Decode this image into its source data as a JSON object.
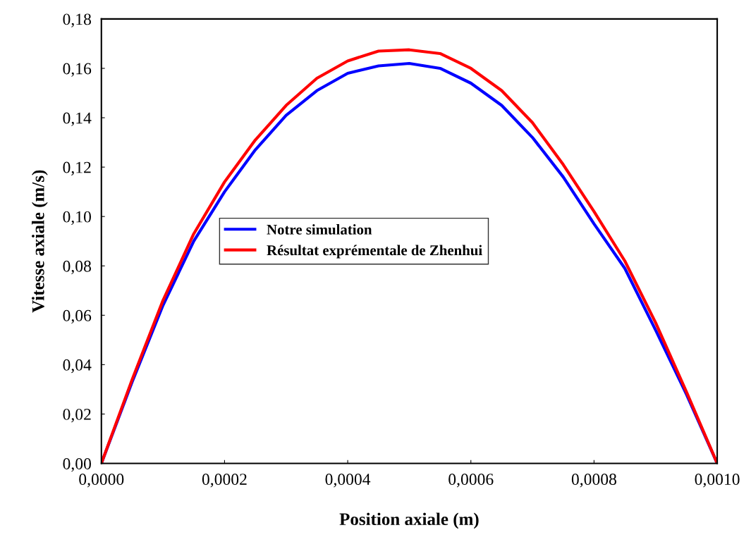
{
  "chart_data": {
    "type": "line",
    "xlabel": "Position axiale (m)",
    "ylabel": "Vitesse axiale (m/s)",
    "x": [
      0,
      5e-05,
      0.0001,
      0.00015,
      0.0002,
      0.00025,
      0.0003,
      0.00035,
      0.0004,
      0.00045,
      0.0005,
      0.00055,
      0.0006,
      0.00065,
      0.0007,
      0.00075,
      0.0008,
      0.00085,
      0.0009,
      0.00095,
      0.001
    ],
    "series": [
      {
        "name": "Notre simulation",
        "color": "#0000ff",
        "values": [
          0,
          0.033,
          0.064,
          0.09,
          0.11,
          0.127,
          0.141,
          0.151,
          0.158,
          0.161,
          0.162,
          0.16,
          0.154,
          0.145,
          0.132,
          0.116,
          0.097,
          0.079,
          0.054,
          0.028,
          0
        ]
      },
      {
        "name": "Résultat exprémentale de Zhenhui",
        "color": "#ff0000",
        "values": [
          0,
          0.034,
          0.066,
          0.093,
          0.114,
          0.131,
          0.145,
          0.156,
          0.163,
          0.167,
          0.1675,
          0.166,
          0.16,
          0.151,
          0.138,
          0.121,
          0.102,
          0.082,
          0.057,
          0.029,
          0
        ]
      }
    ],
    "xlim": [
      0,
      0.001
    ],
    "xticks": [
      {
        "value": 0,
        "label": "0,0000"
      },
      {
        "value": 0.0002,
        "label": "0,0002"
      },
      {
        "value": 0.0004,
        "label": "0,0004"
      },
      {
        "value": 0.0006,
        "label": "0,0006"
      },
      {
        "value": 0.0008,
        "label": "0,0008"
      },
      {
        "value": 0.001,
        "label": "0,0010"
      }
    ],
    "ylim": [
      0,
      0.18
    ],
    "yticks": [
      {
        "value": 0,
        "label": "0,00"
      },
      {
        "value": 0.02,
        "label": "0,02"
      },
      {
        "value": 0.04,
        "label": "0,04"
      },
      {
        "value": 0.06,
        "label": "0,06"
      },
      {
        "value": 0.08,
        "label": "0,08"
      },
      {
        "value": 0.1,
        "label": "0,10"
      },
      {
        "value": 0.12,
        "label": "0,12"
      },
      {
        "value": 0.14,
        "label": "0,14"
      },
      {
        "value": 0.16,
        "label": "0,16"
      },
      {
        "value": 0.18,
        "label": "0,18"
      }
    ],
    "legend": "center left",
    "grid": false,
    "line_style": "solid"
  }
}
